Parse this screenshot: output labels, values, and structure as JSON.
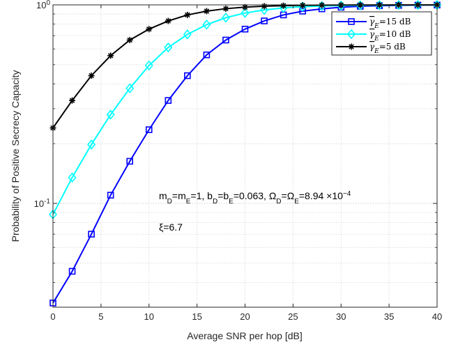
{
  "chart_data": {
    "type": "line",
    "title": "",
    "xlabel": "Average SNR per hop [dB]",
    "ylabel": "Probability of Positive Secrecy Capacity",
    "xlim": [
      0,
      40
    ],
    "ylim": [
      0.03,
      1
    ],
    "yscale": "log",
    "grid": true,
    "legend_position": "top-right",
    "x_ticks": [
      0,
      5,
      10,
      15,
      20,
      25,
      30,
      35,
      40
    ],
    "y_ticks": [
      {
        "value": 0.1,
        "base": "10",
        "exp": "-1"
      },
      {
        "value": 1,
        "base": "10",
        "exp": "0"
      }
    ],
    "x": [
      0,
      2,
      4,
      6,
      8,
      10,
      12,
      14,
      16,
      18,
      20,
      22,
      24,
      26,
      28,
      30,
      32,
      34,
      36,
      38,
      40
    ],
    "series": [
      {
        "name": "γ̄E=15 dB",
        "legend": {
          "main": "γ",
          "sub": "E",
          "suffix": "=15 dB"
        },
        "color": "#0000ff",
        "marker": "square",
        "values": [
          0.0315,
          0.0455,
          0.07,
          0.11,
          0.163,
          0.235,
          0.33,
          0.44,
          0.56,
          0.665,
          0.755,
          0.83,
          0.89,
          0.93,
          0.955,
          0.973,
          0.984,
          0.99,
          0.994,
          0.997,
          0.998
        ]
      },
      {
        "name": "γ̄E=10 dB",
        "legend": {
          "main": "γ",
          "sub": "E",
          "suffix": "=10 dB"
        },
        "color": "#00ffff",
        "marker": "diamond",
        "values": [
          0.088,
          0.135,
          0.198,
          0.28,
          0.38,
          0.495,
          0.61,
          0.71,
          0.795,
          0.862,
          0.91,
          0.943,
          0.965,
          0.979,
          0.987,
          0.992,
          0.995,
          0.997,
          0.998,
          0.999,
          0.999
        ]
      },
      {
        "name": "γ̄E=5 dB",
        "legend": {
          "main": "γ",
          "sub": "E",
          "suffix": "=5 dB"
        },
        "color": "#000000",
        "marker": "asterisk",
        "values": [
          0.24,
          0.33,
          0.44,
          0.555,
          0.665,
          0.755,
          0.83,
          0.89,
          0.93,
          0.957,
          0.974,
          0.985,
          0.991,
          0.995,
          0.997,
          0.998,
          0.999,
          0.999,
          1.0,
          1.0,
          1.0
        ]
      }
    ],
    "annotations": [
      {
        "id": "params",
        "text": "mD=mE=1, bD=bE=0.063, ΩD=ΩE=8.94 ×10−4"
      },
      {
        "id": "xi",
        "text": "ξ=6.7"
      }
    ]
  }
}
